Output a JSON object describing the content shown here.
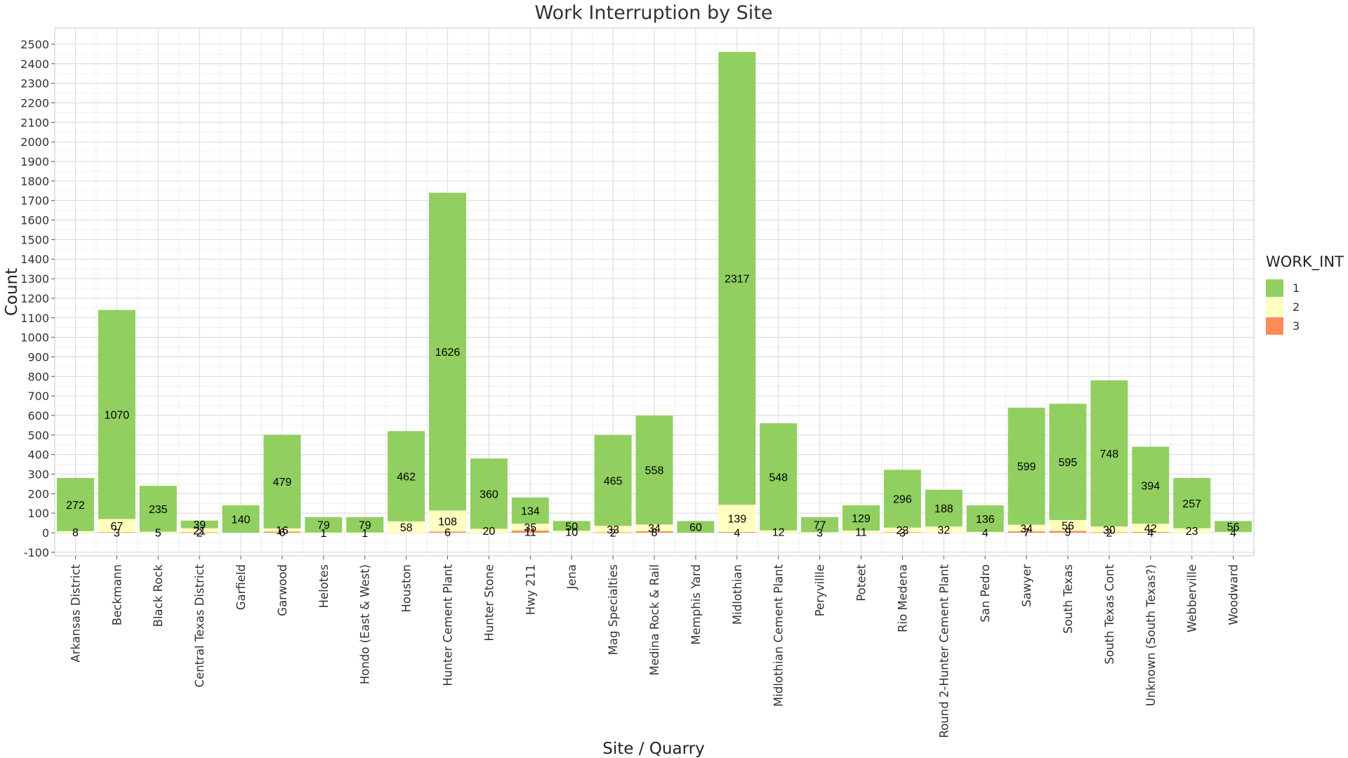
{
  "chart_data": {
    "type": "bar",
    "stacked": true,
    "title": "Work Interruption by Site",
    "xlabel": "Site / Quarry",
    "ylabel": "Count",
    "ylim": [
      -100,
      2500
    ],
    "yticks": [
      -100,
      0,
      100,
      200,
      300,
      400,
      500,
      600,
      700,
      800,
      900,
      1000,
      1100,
      1200,
      1300,
      1400,
      1500,
      1600,
      1700,
      1800,
      1900,
      2000,
      2100,
      2200,
      2300,
      2400,
      2500
    ],
    "grid": true,
    "legend": {
      "title": "WORK_INT",
      "position": "right"
    },
    "categories": [
      "Arkansas District",
      "Beckmann",
      "Black Rock",
      "Central Texas District",
      "Garfield",
      "Garwood",
      "Helotes",
      "Hondo (East & West)",
      "Houston",
      "Hunter Cement Plant",
      "Hunter Stone",
      "Hwy 211",
      "Jena",
      "Mag Specialties",
      "Medina Rock & Rail",
      "Memphis Yard",
      "Midlothian",
      "Midlothian Cement Plant",
      "Peryvillle",
      "Poteet",
      "Rio Medena",
      "Round 2-Hunter Cement Plant",
      "San Pedro",
      "Sawyer",
      "South Texas",
      "South Texas Cont",
      "Unknown (South Texas?)",
      "Webberville",
      "Woodward"
    ],
    "series": [
      {
        "name": "1",
        "color": "#91cf60",
        "values": [
          272,
          1070,
          235,
          39,
          140,
          479,
          79,
          79,
          462,
          1626,
          360,
          134,
          50,
          465,
          558,
          60,
          2317,
          548,
          77,
          129,
          296,
          188,
          136,
          599,
          595,
          748,
          394,
          257,
          56
        ]
      },
      {
        "name": "2",
        "color": "#ffffbf",
        "values": [
          8,
          67,
          5,
          21,
          null,
          16,
          1,
          1,
          58,
          108,
          20,
          35,
          10,
          33,
          34,
          null,
          139,
          12,
          3,
          11,
          23,
          32,
          4,
          34,
          56,
          30,
          42,
          23,
          4
        ]
      },
      {
        "name": "3",
        "color": "#fc8d59",
        "values": [
          null,
          3,
          null,
          2,
          null,
          6,
          null,
          null,
          null,
          6,
          null,
          11,
          null,
          2,
          8,
          null,
          4,
          null,
          null,
          null,
          3,
          null,
          null,
          7,
          9,
          2,
          4,
          null,
          null
        ]
      }
    ]
  }
}
